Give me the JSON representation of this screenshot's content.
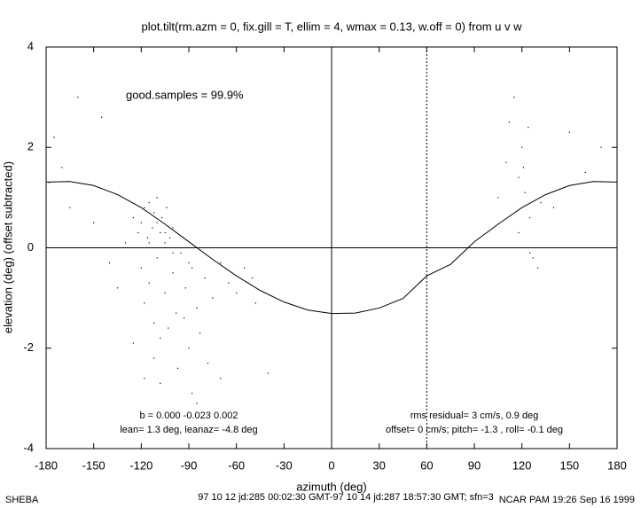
{
  "chart_data": {
    "type": "scatter",
    "title": "plot.tilt(rm.azm = 0, fix.gill = T, ellim = 4, wmax = 0.13, w.off = 0) from u v w",
    "x_label": "azimuth (deg)",
    "y_label": "elevation (deg)  (offset subtracted)",
    "xlim": [
      -180,
      180
    ],
    "ylim": [
      -4,
      4
    ],
    "xticks": [
      -180,
      -150,
      -120,
      -90,
      -60,
      -30,
      0,
      30,
      60,
      90,
      120,
      150,
      180
    ],
    "yticks": [
      -4,
      -2,
      0,
      2,
      4
    ],
    "vlines": [
      0,
      60
    ],
    "hlines": [
      0
    ],
    "annotations": [
      "good.samples = 99.9%",
      "b =  0.000 -0.023  0.002",
      "lean= 1.3 deg, leanaz= -4.8 deg",
      "rms residual= 3 cm/s, 0.9 deg",
      "offset= 0 cm/s; pitch= -1.3 , roll= -0.1 deg"
    ],
    "footer": [
      "SHEBA",
      "97 10 12 jd:285 00:02:30 GMT-97 10 14 jd:287 18:57:30 GMT; sfn=3",
      "NCAR PAM 19:26 Sep 16 1999"
    ],
    "series": [
      {
        "type": "scatter",
        "color": "#000000",
        "x": [
          -178,
          -175,
          -170,
          -165,
          -160,
          -150,
          -145,
          -140,
          -135,
          -130,
          -125,
          -122,
          -120,
          -118,
          -116,
          -115,
          -113,
          -112,
          -110,
          -108,
          -107,
          -105,
          -104,
          -102,
          -100,
          -120,
          -118,
          -115,
          -112,
          -110,
          -108,
          -105,
          -100,
          -98,
          -95,
          -92,
          -90,
          -88,
          -85,
          -80,
          -75,
          -70,
          -65,
          -60,
          -55,
          -50,
          -125,
          -118,
          -112,
          -108,
          -103,
          -97,
          -93,
          -88,
          -83,
          -78,
          -115,
          -110,
          -105,
          -100,
          -95,
          -90,
          -48,
          -40,
          105,
          110,
          112,
          115,
          118,
          120,
          122,
          124,
          125,
          127,
          130,
          132,
          118,
          121,
          125,
          140,
          150,
          160,
          170,
          -85,
          -70
        ],
        "values": [
          1.3,
          2.2,
          1.6,
          0.8,
          3.0,
          0.5,
          2.6,
          -0.3,
          -0.8,
          0.1,
          0.6,
          0.3,
          0.5,
          0.8,
          0.2,
          0.9,
          0.4,
          0.7,
          1.0,
          0.3,
          0.6,
          0.1,
          0.8,
          0.2,
          0.4,
          -0.4,
          -1.1,
          -0.7,
          -1.5,
          -0.2,
          -1.8,
          -0.9,
          -0.5,
          -1.3,
          -0.1,
          -0.8,
          -2.0,
          -0.4,
          -1.2,
          -0.6,
          -1.0,
          -0.3,
          -0.7,
          -0.9,
          -0.4,
          -0.6,
          -1.9,
          -2.6,
          -2.2,
          -2.7,
          -1.6,
          -2.4,
          -1.4,
          -2.9,
          -1.7,
          -2.3,
          0.1,
          0.5,
          0.3,
          -0.1,
          0.0,
          -0.3,
          -1.1,
          -2.5,
          1.0,
          1.7,
          2.5,
          3.0,
          1.4,
          2.0,
          1.1,
          2.4,
          0.6,
          -0.2,
          -0.4,
          0.9,
          0.3,
          1.6,
          -0.1,
          0.8,
          2.3,
          1.5,
          2.0,
          -3.1,
          -2.6
        ]
      },
      {
        "type": "line",
        "color": "#000000",
        "x": [
          -180,
          -165,
          -150,
          -135,
          -120,
          -105,
          -90,
          -75,
          -60,
          -45,
          -30,
          -15,
          0,
          15,
          30,
          45,
          60,
          75,
          90,
          105,
          120,
          135,
          150,
          165,
          180
        ],
        "values": [
          1.31,
          1.32,
          1.24,
          1.06,
          0.8,
          0.47,
          0.12,
          -0.23,
          -0.56,
          -0.85,
          -1.08,
          -1.24,
          -1.31,
          -1.3,
          -1.2,
          -1.01,
          -0.56,
          -0.33,
          0.12,
          0.47,
          0.8,
          1.06,
          1.24,
          1.32,
          1.31
        ]
      }
    ]
  }
}
